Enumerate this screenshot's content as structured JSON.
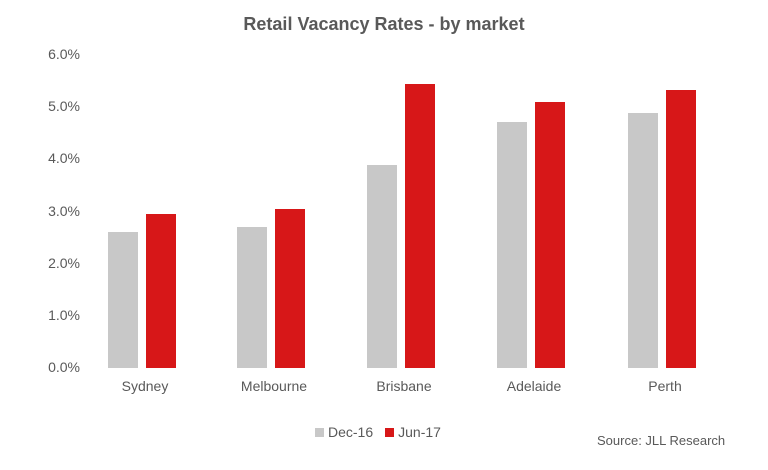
{
  "chart_data": {
    "type": "bar",
    "title": "Retail Vacancy Rates - by market",
    "xlabel": "",
    "ylabel": "",
    "categories": [
      "Sydney",
      "Melbourne",
      "Brisbane",
      "Adelaide",
      "Perth"
    ],
    "series": [
      {
        "name": "Dec-16",
        "color": "#c8c8c8",
        "values": [
          2.6,
          2.7,
          3.9,
          4.72,
          4.88
        ]
      },
      {
        "name": "Jun-17",
        "color": "#d71718",
        "values": [
          2.95,
          3.05,
          5.45,
          5.1,
          5.32
        ]
      }
    ],
    "ylim": [
      0,
      6
    ],
    "yticks": [
      "0.0%",
      "1.0%",
      "2.0%",
      "3.0%",
      "4.0%",
      "5.0%",
      "6.0%"
    ],
    "grid": false,
    "legend_position": "bottom",
    "annotation": "Source: JLL Research"
  },
  "title": "Retail Vacancy Rates - by market",
  "legend": [
    {
      "label": "Dec-16",
      "color": "#c8c8c8"
    },
    {
      "label": "Jun-17",
      "color": "#d71718"
    }
  ],
  "source": "Source: JLL Research"
}
